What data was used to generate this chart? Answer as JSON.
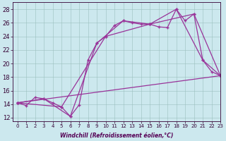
{
  "background_color": "#cce8ee",
  "line_color": "#993399",
  "marker": "+",
  "series": [
    {
      "x": [
        0,
        1,
        2,
        3,
        4,
        5,
        6,
        7,
        8,
        9,
        10,
        11,
        12,
        13,
        14,
        15,
        16,
        17,
        18,
        19,
        20,
        21,
        22,
        23
      ],
      "y": [
        14.2,
        13.8,
        15.0,
        14.8,
        14.2,
        13.6,
        12.2,
        13.9,
        20.5,
        23.0,
        24.0,
        25.6,
        26.3,
        26.0,
        25.8,
        25.8,
        25.4,
        25.3,
        28.0,
        26.3,
        27.3,
        20.5,
        18.8,
        18.2
      ],
      "linestyle": "-",
      "linewidth": 0.9
    },
    {
      "x": [
        0,
        3,
        6,
        9,
        12,
        15,
        18,
        21,
        23
      ],
      "y": [
        14.2,
        14.8,
        12.2,
        23.0,
        26.3,
        25.8,
        28.0,
        20.5,
        18.2
      ],
      "linestyle": "-",
      "linewidth": 0.9
    },
    {
      "x": [
        0,
        23
      ],
      "y": [
        14.2,
        18.2
      ],
      "linestyle": "-",
      "linewidth": 0.9
    },
    {
      "x": [
        0,
        5,
        10,
        15,
        20,
        23
      ],
      "y": [
        14.2,
        13.6,
        24.0,
        25.8,
        27.3,
        18.2
      ],
      "linestyle": "-",
      "linewidth": 0.9
    }
  ],
  "xlabel": "Windchill (Refroidissement éolien,°C)",
  "ylabel_ticks": [
    12,
    14,
    16,
    18,
    20,
    22,
    24,
    26,
    28
  ],
  "xlim": [
    -0.5,
    23
  ],
  "ylim": [
    11.5,
    29
  ],
  "grid_color": "#9bbfbf",
  "xtick_labels": [
    "0",
    "1",
    "2",
    "3",
    "4",
    "5",
    "6",
    "7",
    "8",
    "9",
    "10",
    "11",
    "12",
    "13",
    "14",
    "15",
    "16",
    "17",
    "18",
    "19",
    "20",
    "21",
    "22",
    "23"
  ]
}
